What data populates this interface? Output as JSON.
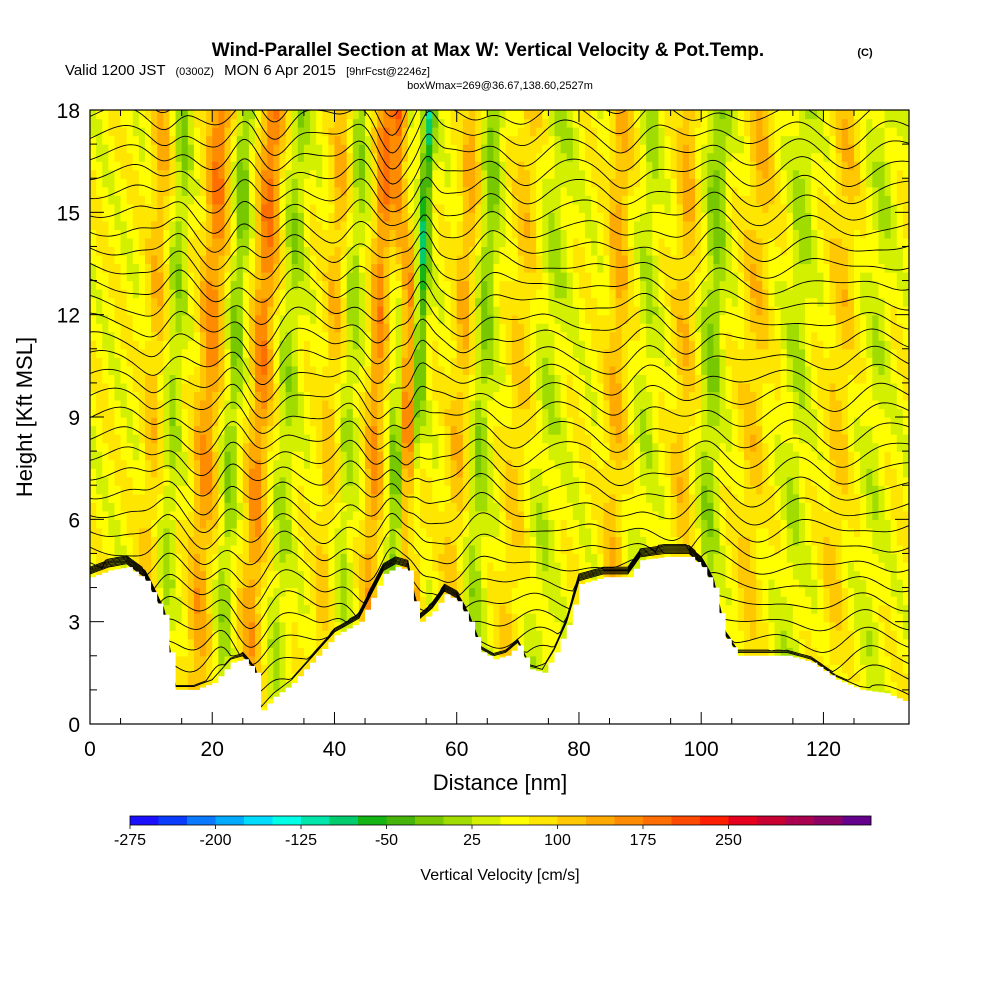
{
  "header": {
    "title": "Wind-Parallel Section at Max W: Vertical Velocity & Pot.Temp.",
    "copyright": "(C)",
    "valid_prefix": "Valid 1200 JST",
    "valid_utc": "(0300Z)",
    "valid_date": "MON 6 Apr 2015",
    "forecast": "[9hrFcst@2246z]",
    "boxinfo": "boxWmax=269@36.67,138.60,2527m"
  },
  "chart_data": {
    "type": "heatmap",
    "xlabel": "Distance [nm]",
    "ylabel": "Height [Kft MSL]",
    "xlim": [
      0,
      134
    ],
    "ylim": [
      0,
      18
    ],
    "x_ticks": [
      0,
      20,
      40,
      60,
      80,
      100,
      120
    ],
    "y_ticks": [
      0,
      3,
      6,
      9,
      12,
      15,
      18
    ],
    "terrain": {
      "x": [
        0,
        3,
        6,
        9,
        12,
        14,
        17,
        20,
        23,
        25,
        27,
        28,
        30,
        33,
        36,
        40,
        44,
        48,
        50,
        52,
        53,
        54,
        56,
        58,
        60,
        62,
        64,
        66,
        68,
        70,
        72,
        74,
        76,
        78,
        80,
        84,
        86,
        88,
        90,
        94,
        96,
        98,
        100,
        102,
        104,
        106,
        110,
        114,
        118,
        122,
        126,
        130,
        134
      ],
      "y": [
        4.3,
        4.5,
        4.6,
        4.2,
        3.2,
        1.0,
        1.0,
        1.2,
        1.8,
        1.9,
        1.5,
        0.4,
        0.8,
        1.2,
        1.8,
        2.6,
        3.0,
        4.4,
        4.6,
        4.5,
        3.6,
        3.0,
        3.3,
        3.8,
        3.6,
        3.0,
        2.1,
        1.9,
        2.0,
        2.3,
        1.6,
        1.5,
        2.1,
        2.9,
        4.1,
        4.3,
        4.3,
        4.3,
        4.8,
        4.9,
        4.9,
        4.9,
        4.6,
        4.0,
        2.5,
        2.0,
        2.0,
        2.0,
        1.8,
        1.3,
        1.0,
        0.9,
        0.6
      ]
    },
    "colorbar": {
      "label": "Vertical Velocity [cm/s]",
      "tick_labels": [
        "-275",
        "-200",
        "-125",
        "-50",
        "25",
        "100",
        "175",
        "250"
      ],
      "colors": [
        "#1a0fff",
        "#0a3cff",
        "#0a78ff",
        "#00aaff",
        "#00dcff",
        "#00ffe6",
        "#00e6aa",
        "#00cc6e",
        "#14b414",
        "#46b40a",
        "#78c800",
        "#a0dc00",
        "#d2f000",
        "#ffff00",
        "#ffe600",
        "#ffc800",
        "#ffaa00",
        "#ff8c00",
        "#ff6e00",
        "#ff4b00",
        "#ff1e00",
        "#e6001e",
        "#c80032",
        "#aa0050",
        "#8c0064",
        "#64008c"
      ]
    },
    "bands": [
      {
        "x_base": 8.5,
        "drift": 3.5,
        "w": 1.6,
        "v": 60
      },
      {
        "x_base": 11.5,
        "drift": 4,
        "w": 1.4,
        "v": -60
      },
      {
        "x_base": 17,
        "drift": 4.5,
        "w": 2.0,
        "v": 110
      },
      {
        "x_base": 21,
        "drift": 4.5,
        "w": 1.4,
        "v": -80
      },
      {
        "x_base": 25.5,
        "drift": 4.5,
        "w": 1.8,
        "v": 120
      },
      {
        "x_base": 30,
        "drift": 4.5,
        "w": 1.6,
        "v": -60
      },
      {
        "x_base": 37,
        "drift": 4.5,
        "w": 1.6,
        "v": 60
      },
      {
        "x_base": 40.5,
        "drift": 4,
        "w": 1.5,
        "v": -55
      },
      {
        "x_base": 45,
        "drift": 3.5,
        "w": 1.5,
        "v": 110
      },
      {
        "x_base": 49,
        "drift": 3,
        "w": 1.3,
        "v": -130
      },
      {
        "x_base": 53,
        "drift": -2,
        "w": 1.5,
        "v": 190
      },
      {
        "x_base": 51.5,
        "drift": 4,
        "w": 1.0,
        "v": -150
      },
      {
        "x_base": 58,
        "drift": 5,
        "w": 1.8,
        "v": 70
      },
      {
        "x_base": 62,
        "drift": 4,
        "w": 1.8,
        "v": -75
      },
      {
        "x_base": 68,
        "drift": 4,
        "w": 2.0,
        "v": 50
      },
      {
        "x_base": 73,
        "drift": 4,
        "w": 2.5,
        "v": -40
      },
      {
        "x_base": 85,
        "drift": 2,
        "w": 1.8,
        "v": 70
      },
      {
        "x_base": 90,
        "drift": 2,
        "w": 1.6,
        "v": -40
      },
      {
        "x_base": 96,
        "drift": 2,
        "w": 1.8,
        "v": 60
      },
      {
        "x_base": 100,
        "drift": 3,
        "w": 1.8,
        "v": -75
      },
      {
        "x_base": 107,
        "drift": 3,
        "w": 2.2,
        "v": 55
      },
      {
        "x_base": 114,
        "drift": 3,
        "w": 2.0,
        "v": -45
      },
      {
        "x_base": 121,
        "drift": 3,
        "w": 2.0,
        "v": 50
      },
      {
        "x_base": 127,
        "drift": 3,
        "w": 2.0,
        "v": -35
      }
    ]
  }
}
